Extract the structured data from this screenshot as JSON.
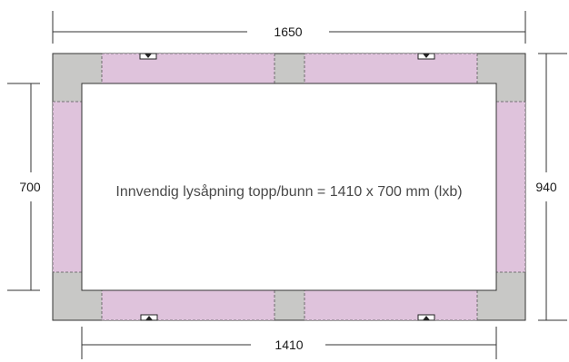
{
  "dimensions": {
    "top_width": "1650",
    "bottom_width": "1410",
    "left_height": "700",
    "right_height": "940"
  },
  "caption": "Innvendig lysåpning topp/bunn = 1410 x 700 mm (lxb)",
  "colors": {
    "frame_gray": "#c8c8c6",
    "panel_pink": "#dfc3dc",
    "line": "#333333"
  }
}
